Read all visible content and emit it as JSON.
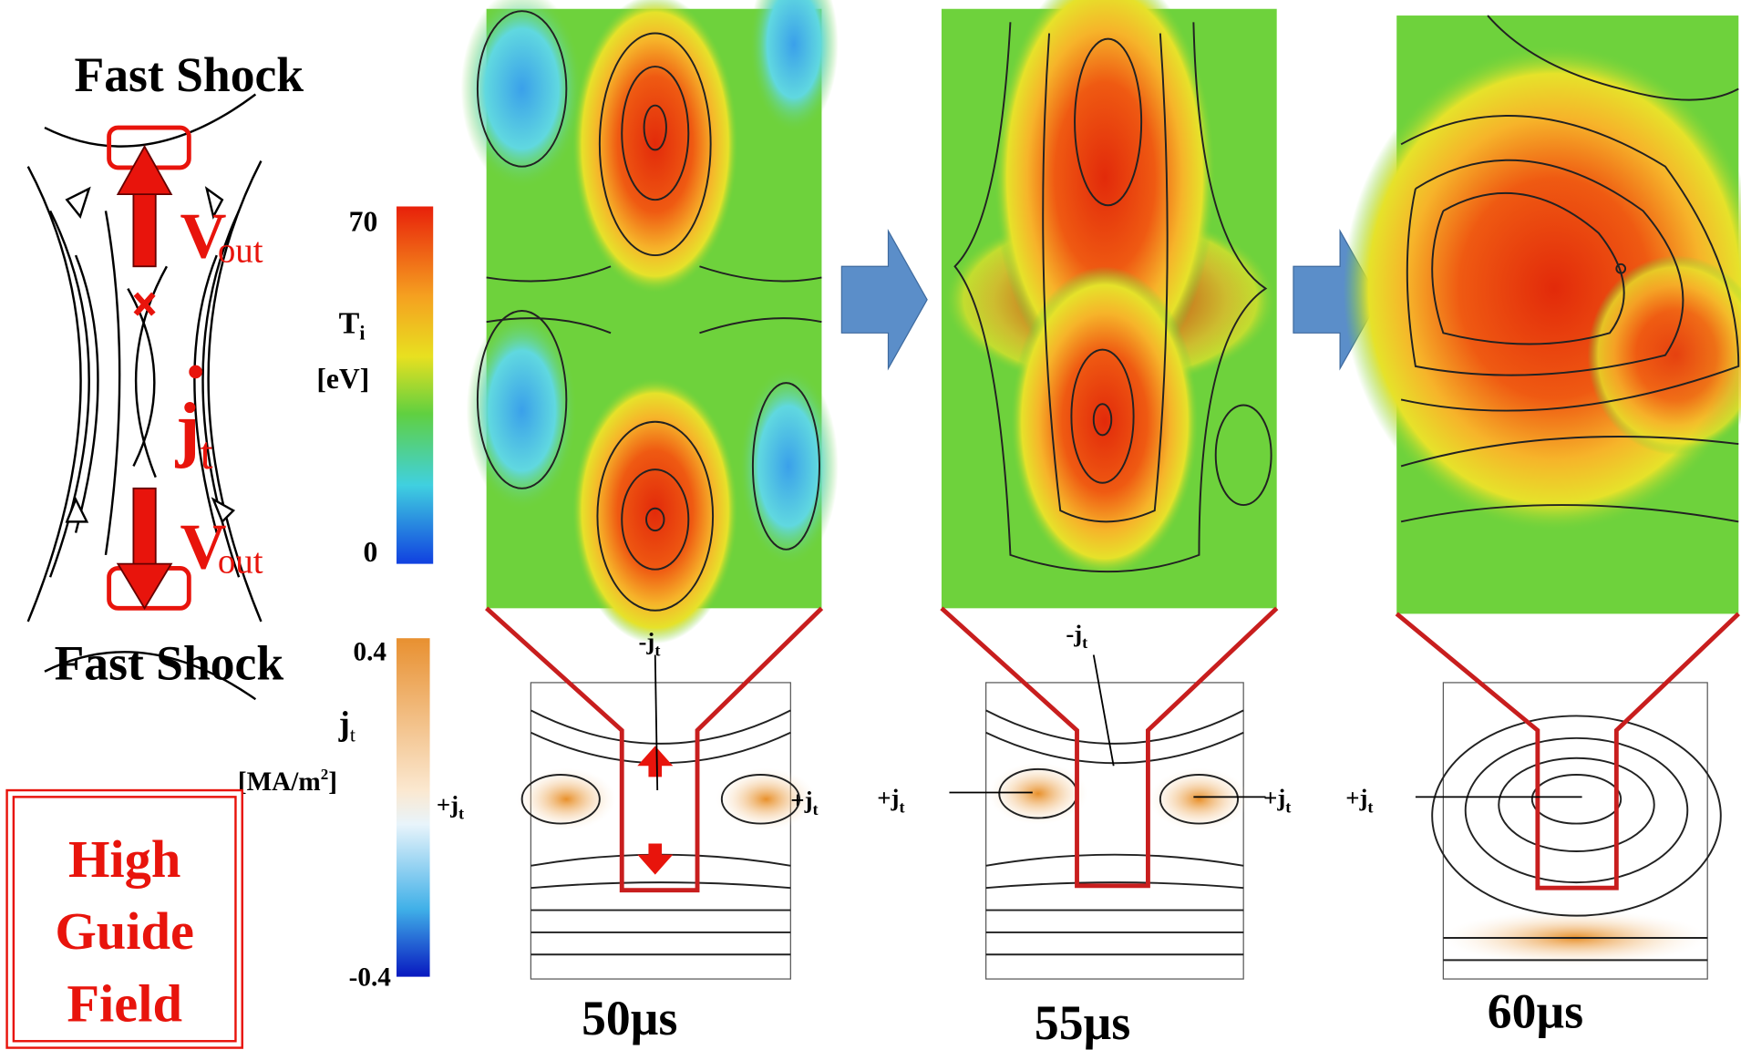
{
  "schematic": {
    "top_label": "Fast Shock",
    "bottom_label": "Fast Shock",
    "velocity_top": {
      "symbol": "V",
      "subscript": "out"
    },
    "velocity_bottom": {
      "symbol": "V",
      "subscript": "out"
    },
    "current": {
      "symbol": "j",
      "subscript": "t"
    }
  },
  "ti_colorbar": {
    "max": 70,
    "min": 0,
    "symbol": "T",
    "subscript": "i",
    "unit": "[eV]"
  },
  "jt_colorbar": {
    "max": 0.4,
    "min": -0.4,
    "symbol": "j",
    "subscript": "t",
    "unit": "[MA/m",
    "unit_superscript": "2",
    "unit_close": "]",
    "annotation": {
      "symbol": "+j",
      "subscript": "t"
    }
  },
  "badge": {
    "lines": [
      "High",
      "Guide",
      "Field"
    ]
  },
  "panels": [
    {
      "time": "50µs",
      "annotations": [
        {
          "symbol": "-j",
          "subscript": "t"
        },
        {
          "symbol": "+j",
          "subscript": "t"
        }
      ]
    },
    {
      "time": "55µs",
      "annotations": [
        {
          "symbol": "-j",
          "subscript": "t"
        },
        {
          "symbol": "+j",
          "subscript": "t"
        },
        {
          "symbol": "+j",
          "subscript": "t"
        }
      ]
    },
    {
      "time": "60µs",
      "annotations": [
        {
          "symbol": "+j",
          "subscript": "t"
        }
      ]
    }
  ]
}
